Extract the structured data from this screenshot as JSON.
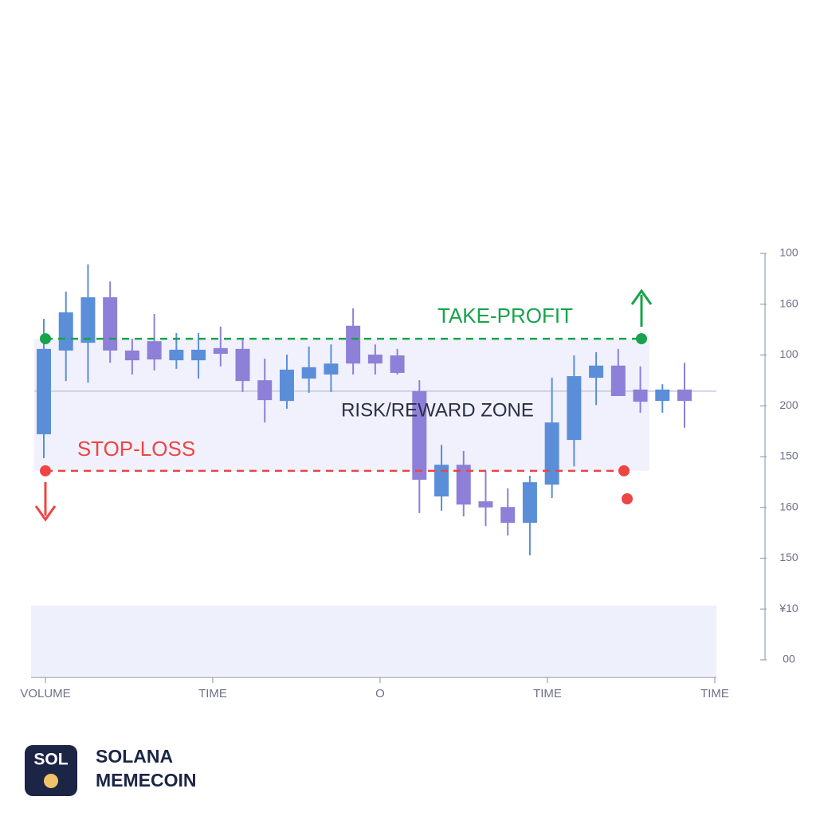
{
  "chart_data": {
    "type": "candlestick",
    "annotations": {
      "take_profit": "TAKE-PROFIT",
      "stop_loss": "STOP-LOSS",
      "zone": "RISK/REWARD ZONE"
    },
    "levels": {
      "take_profit": 79.0,
      "stop_loss": 46.5,
      "midline": 66.1
    },
    "xlabels": [
      "VOLUME",
      "TIME",
      "O",
      "TIME",
      "TIME"
    ],
    "ylim": [
      0,
      100
    ],
    "yticks": [
      {
        "value": 0,
        "label": "00"
      },
      {
        "value": 12.5,
        "label": "¥10"
      },
      {
        "value": 25,
        "label": "150"
      },
      {
        "value": 37.5,
        "label": "160"
      },
      {
        "value": 50,
        "label": "150"
      },
      {
        "value": 62.5,
        "label": "200"
      },
      {
        "value": 75,
        "label": "100"
      },
      {
        "value": 87.5,
        "label": "160"
      },
      100
    ],
    "up_color": "#5b8ed8",
    "down_color": "#8e7fd8",
    "open": [
      55.5,
      76.1,
      78.0,
      89.2,
      76.1,
      78.4,
      73.7,
      73.7,
      76.7,
      76.5,
      68.8,
      63.7,
      69.2,
      70.2,
      82.2,
      75.1,
      74.9,
      66.1,
      40.2,
      48.0,
      39.0,
      37.6,
      33.7,
      43.1,
      54.1,
      69.4,
      72.4,
      66.5,
      63.7,
      66.5
    ],
    "high": [
      83.9,
      90.6,
      97.3,
      93.1,
      79.0,
      85.1,
      80.4,
      80.4,
      82.0,
      79.0,
      74.1,
      75.1,
      77.1,
      77.6,
      86.5,
      77.6,
      76.5,
      68.8,
      52.9,
      51.4,
      46.5,
      42.2,
      45.3,
      69.4,
      74.9,
      75.7,
      76.5,
      72.2,
      67.8,
      73.1
    ],
    "low": [
      49.6,
      68.6,
      68.2,
      73.1,
      70.2,
      71.2,
      71.6,
      69.2,
      72.2,
      65.9,
      58.4,
      61.8,
      65.7,
      65.9,
      70.2,
      70.2,
      70.2,
      36.1,
      36.7,
      35.3,
      32.9,
      30.6,
      25.7,
      39.8,
      47.6,
      62.7,
      64.9,
      60.8,
      60.8,
      57.1
    ],
    "close": [
      76.5,
      85.5,
      89.2,
      76.1,
      73.7,
      73.9,
      76.3,
      76.3,
      75.3,
      68.6,
      63.9,
      71.4,
      72.0,
      72.9,
      72.9,
      72.9,
      70.6,
      44.3,
      48.0,
      38.2,
      37.5,
      33.7,
      43.7,
      58.4,
      69.8,
      72.4,
      64.9,
      63.5,
      66.5,
      63.7
    ]
  },
  "brand": {
    "badge": "SOL",
    "line1": "SOLANA",
    "line2": "MEMECOIN"
  }
}
